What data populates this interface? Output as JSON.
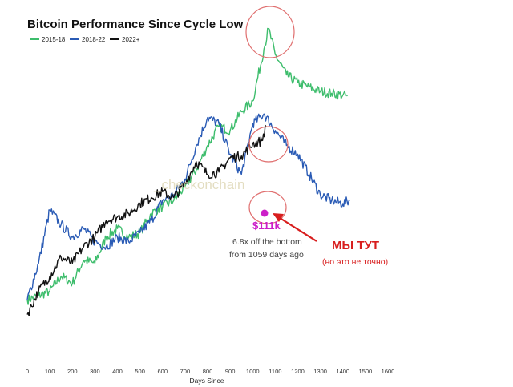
{
  "chart_data": {
    "type": "line",
    "title": "Bitcoin Performance Since Cycle Low",
    "xlabel": "Days Since",
    "ylabel": "",
    "xlim": [
      0,
      1600
    ],
    "ylim": [
      0.6,
      22
    ],
    "yscale": "log",
    "xticks": [
      0,
      100,
      200,
      300,
      400,
      500,
      600,
      700,
      800,
      900,
      1000,
      1100,
      1200,
      1300,
      1400,
      1500,
      1600
    ],
    "legend_position": "top-left",
    "series": [
      {
        "name": "2015-18",
        "color": "#3dbd6c",
        "x": [
          0,
          50,
          100,
          150,
          200,
          250,
          300,
          350,
          400,
          450,
          500,
          550,
          600,
          650,
          700,
          750,
          800,
          850,
          900,
          950,
          1000,
          1050,
          1070,
          1100,
          1150,
          1200,
          1250,
          1300,
          1350,
          1400,
          1420
        ],
        "y": [
          1.0,
          1.05,
          1.1,
          1.3,
          1.2,
          1.55,
          1.5,
          2.0,
          2.2,
          2.0,
          2.1,
          2.6,
          2.8,
          3.0,
          3.5,
          4.2,
          5.5,
          6.8,
          6.5,
          8.0,
          9.0,
          16.0,
          20.0,
          15.0,
          12.0,
          11.0,
          10.5,
          10.0,
          9.8,
          9.6,
          9.5
        ]
      },
      {
        "name": "2018-22",
        "color": "#2a5bb5",
        "x": [
          0,
          50,
          100,
          150,
          200,
          250,
          300,
          350,
          400,
          450,
          500,
          550,
          600,
          650,
          700,
          750,
          800,
          850,
          900,
          950,
          1000,
          1050,
          1100,
          1150,
          1200,
          1250,
          1300,
          1350,
          1400,
          1430
        ],
        "y": [
          1.0,
          1.5,
          2.7,
          2.3,
          2.0,
          2.2,
          1.9,
          1.8,
          2.0,
          1.9,
          2.1,
          2.4,
          3.0,
          3.2,
          3.8,
          5.5,
          7.5,
          7.0,
          5.0,
          4.0,
          7.0,
          7.8,
          6.5,
          5.5,
          5.0,
          4.0,
          3.2,
          3.0,
          2.9,
          3.0
        ]
      },
      {
        "name": "2022+",
        "color": "#111111",
        "x": [
          0,
          50,
          100,
          150,
          200,
          250,
          300,
          350,
          400,
          450,
          500,
          550,
          600,
          650,
          700,
          750,
          800,
          850,
          900,
          950,
          1000,
          1040,
          1059
        ],
        "y": [
          0.85,
          1.1,
          1.3,
          1.6,
          1.5,
          1.8,
          2.0,
          2.4,
          2.5,
          2.6,
          2.9,
          3.1,
          3.3,
          3.1,
          3.6,
          4.6,
          4.0,
          4.1,
          4.8,
          4.9,
          5.6,
          5.8,
          6.8
        ]
      }
    ],
    "annotations": {
      "watermark": "_checkonchain",
      "price_label": "$111k",
      "note_line_1": "6.8x off the bottom",
      "note_line_2": "from 1059 days ago",
      "callout_main": "МЫ ТУТ",
      "callout_sub": "(но это не точно)",
      "circle_color": "#e07070",
      "marker_color": "#cc20c8",
      "arrow_color": "#d81e1e"
    }
  }
}
